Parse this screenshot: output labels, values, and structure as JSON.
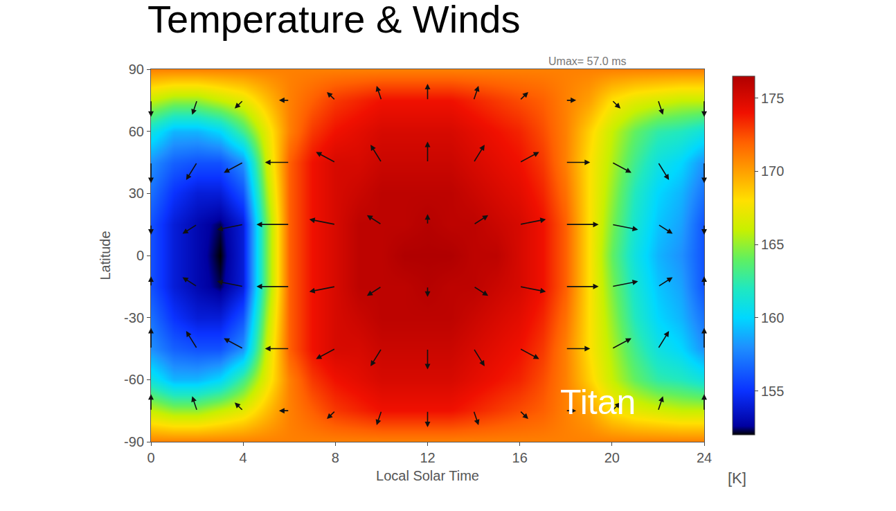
{
  "chart_data": {
    "type": "heatmap",
    "title": "Temperature & Winds",
    "x_label": "Local Solar Time",
    "y_label": "Latitude",
    "annotation": "Titan",
    "wind_max_label": "Umax= 57.0 ms",
    "xlim": [
      0,
      24
    ],
    "xticks": [
      0,
      4,
      8,
      12,
      16,
      20,
      24
    ],
    "ylim": [
      -90,
      90
    ],
    "yticks": [
      -90,
      -60,
      -30,
      0,
      30,
      60,
      90
    ],
    "x": [
      0,
      1,
      2,
      3,
      4,
      5,
      6,
      7,
      8,
      9,
      10,
      11,
      12,
      13,
      14,
      15,
      16,
      17,
      18,
      19,
      20,
      21,
      22,
      23,
      24
    ],
    "y": [
      -90,
      -75,
      -60,
      -45,
      -30,
      -15,
      0,
      15,
      30,
      45,
      60,
      75,
      90
    ],
    "z": [
      [
        171,
        171,
        171,
        171,
        171,
        171,
        171,
        171,
        171,
        171,
        171,
        171,
        171,
        171,
        171,
        171,
        171,
        171,
        171,
        171,
        171,
        171,
        171,
        171,
        171
      ],
      [
        166,
        165,
        165,
        166,
        167,
        169,
        171,
        172,
        173,
        173.5,
        174,
        174,
        174,
        174,
        173.5,
        173,
        172.5,
        172,
        171,
        170,
        168,
        167,
        166.5,
        166,
        166
      ],
      [
        161,
        159,
        159,
        160,
        163,
        167,
        171,
        173,
        174,
        174.5,
        175,
        175,
        175,
        175,
        174.5,
        174,
        173.5,
        172.5,
        171,
        168.5,
        166,
        164,
        162.5,
        162,
        161
      ],
      [
        158,
        156.5,
        156,
        156,
        158,
        166,
        172,
        174,
        175,
        175,
        175.5,
        175.5,
        175.5,
        175.5,
        175,
        174.5,
        174,
        173,
        171,
        168,
        165.5,
        163,
        161,
        160,
        158
      ],
      [
        157,
        155,
        154,
        154,
        156,
        165,
        172,
        174,
        175,
        175.5,
        176,
        176,
        176,
        176,
        175.5,
        175,
        174.5,
        173.5,
        171.5,
        168,
        165,
        162,
        160,
        159,
        157
      ],
      [
        156,
        154,
        153,
        152.3,
        154,
        164,
        172,
        174,
        175,
        176,
        176,
        176,
        176.3,
        176,
        176,
        175.5,
        175,
        174,
        172,
        168,
        164.5,
        161.5,
        159.5,
        158.5,
        156
      ],
      [
        156,
        154,
        153,
        152,
        154,
        164,
        172,
        174,
        175,
        176,
        176,
        176.5,
        176.5,
        176.5,
        176,
        176,
        175,
        174,
        172,
        168,
        164,
        161,
        159,
        158,
        156
      ],
      [
        156,
        154,
        153,
        152.3,
        154,
        164,
        172,
        174,
        175,
        176,
        176,
        176,
        176.3,
        176,
        176,
        175.5,
        175,
        174,
        172,
        168,
        164.5,
        161.5,
        159.5,
        158.5,
        156
      ],
      [
        157,
        155,
        154,
        154,
        156,
        165,
        172,
        174,
        175,
        175.5,
        176,
        176,
        176,
        176,
        175.5,
        175,
        174.5,
        173.5,
        171.5,
        168,
        165,
        162,
        160,
        159,
        157
      ],
      [
        158,
        156.5,
        156,
        156,
        158,
        166,
        172,
        174,
        175,
        175,
        175.5,
        175.5,
        175.5,
        175.5,
        175,
        174.5,
        174,
        173,
        171,
        168,
        165.5,
        163,
        161,
        160,
        158
      ],
      [
        161,
        159,
        159,
        160,
        163,
        167,
        171,
        173,
        174,
        174.5,
        175,
        175,
        175,
        175,
        174.5,
        174,
        173.5,
        172.5,
        171,
        168.5,
        166,
        164,
        162.5,
        162,
        161
      ],
      [
        166,
        165,
        165,
        166,
        167,
        169,
        171,
        172,
        173,
        173.5,
        174,
        174,
        174,
        174,
        173.5,
        173,
        172.5,
        172,
        171,
        170,
        168,
        167,
        166.5,
        166,
        166
      ],
      [
        171,
        171,
        171,
        171,
        171,
        171,
        171,
        171,
        171,
        171,
        171,
        171,
        171,
        171,
        171,
        171,
        171,
        171,
        171,
        171,
        171,
        171,
        171,
        171,
        171
      ]
    ],
    "colorbar": {
      "range": [
        152,
        176.5
      ],
      "ticks": [
        155,
        160,
        165,
        170,
        175
      ],
      "label": "[K]"
    },
    "winds": {
      "lst": [
        0,
        2,
        4,
        6,
        8,
        10,
        12,
        14,
        16,
        18,
        20,
        22,
        24
      ],
      "lat": [
        -75,
        -45,
        -15,
        15,
        45,
        75
      ],
      "u": [
        [
          0,
          -8,
          -14,
          -17,
          -14,
          -8,
          0,
          8,
          14,
          17,
          14,
          8,
          0
        ],
        [
          0,
          -18,
          -32,
          -40,
          -32,
          -18,
          0,
          18,
          32,
          40,
          32,
          18,
          0
        ],
        [
          0,
          -24,
          -43,
          -54,
          -43,
          -24,
          0,
          24,
          43,
          54,
          43,
          24,
          0
        ],
        [
          0,
          -24,
          -43,
          -54,
          -43,
          -24,
          0,
          24,
          43,
          54,
          43,
          24,
          0
        ],
        [
          0,
          -18,
          -32,
          -40,
          -32,
          -18,
          0,
          18,
          32,
          40,
          32,
          18,
          0
        ],
        [
          0,
          -8,
          -14,
          -17,
          -14,
          -8,
          0,
          8,
          14,
          17,
          14,
          8,
          0
        ]
      ],
      "v": [
        [
          16,
          14,
          8,
          0,
          -8,
          -14,
          -16,
          -14,
          -8,
          0,
          8,
          14,
          16
        ],
        [
          20,
          17,
          10,
          0,
          -10,
          -17,
          -20,
          -17,
          -10,
          0,
          10,
          17,
          20
        ],
        [
          10,
          9,
          5,
          0,
          -5,
          -9,
          -10,
          -9,
          -5,
          0,
          5,
          9,
          10
        ],
        [
          -10,
          -9,
          -5,
          0,
          5,
          9,
          10,
          9,
          5,
          0,
          -5,
          -9,
          -10
        ],
        [
          -20,
          -17,
          -10,
          0,
          10,
          17,
          20,
          17,
          10,
          0,
          -10,
          -17,
          -20
        ],
        [
          -16,
          -14,
          -8,
          0,
          8,
          14,
          16,
          14,
          8,
          0,
          -8,
          -14,
          -16
        ]
      ]
    }
  }
}
